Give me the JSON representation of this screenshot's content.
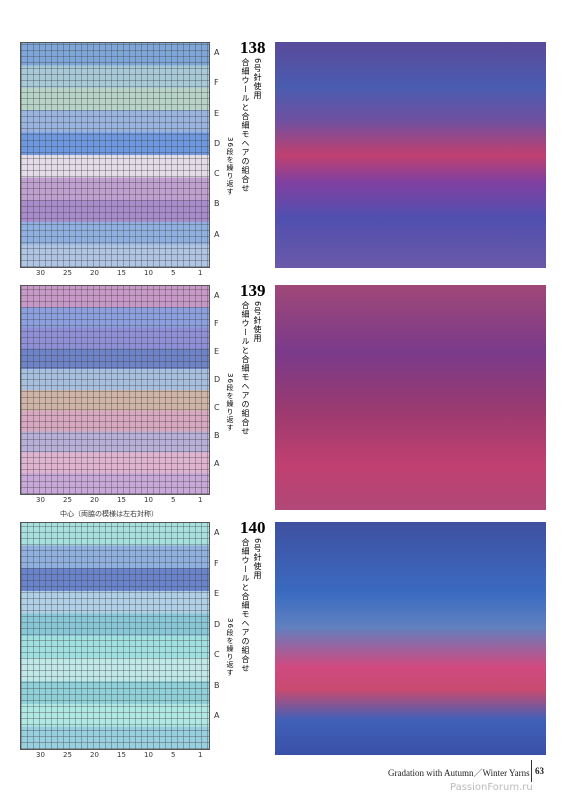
{
  "sections": [
    {
      "number": "138",
      "needle": "6号針使用",
      "yarn": "合細ウールと合細モヘアの組合せ",
      "repeat": "36段を繰り返す",
      "rows": [
        "A",
        "F",
        "E",
        "D",
        "C",
        "B",
        "A"
      ],
      "columns": [
        "30",
        "25",
        "20",
        "15",
        "10",
        "5",
        "1"
      ]
    },
    {
      "number": "139",
      "needle": "6号針使用",
      "yarn": "合細ウールと合細モヘアの組合せ",
      "repeat": "36段を繰り返す",
      "rows": [
        "A",
        "F",
        "E",
        "D",
        "C",
        "B",
        "A"
      ],
      "columns": [
        "30",
        "25",
        "20",
        "15",
        "10",
        "5",
        "1"
      ],
      "note": "中心（両脇の模様は左右対称）"
    },
    {
      "number": "140",
      "needle": "6号針使用",
      "yarn": "合細ウールと合細モヘアの組合せ",
      "repeat": "36段を繰り返す",
      "rows": [
        "A",
        "F",
        "E",
        "D",
        "C",
        "B",
        "A"
      ],
      "columns": [
        "30",
        "25",
        "20",
        "15",
        "10",
        "5",
        "1"
      ]
    }
  ],
  "footer": {
    "caption": "Gradation with Autumn／Winter Yarns",
    "page": "63",
    "watermark": "PassionForum.ru"
  }
}
